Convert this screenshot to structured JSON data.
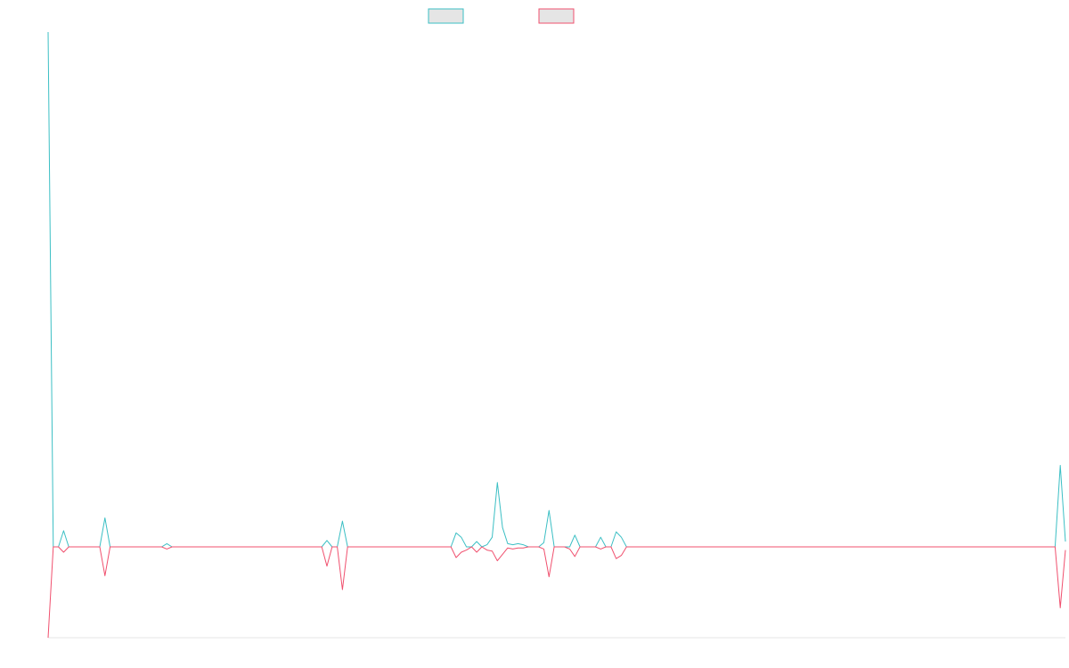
{
  "colors": {
    "background": "#ffffff",
    "legend_fill": "#e5e5e5",
    "axis": "#e6e6e6"
  },
  "legend": {
    "placement": "top-center",
    "entries": [
      {
        "label": "",
        "color": "#3bbfc4"
      },
      {
        "label": "",
        "color": "#f0506e"
      }
    ]
  },
  "chart_data": {
    "type": "line",
    "title": "",
    "xlabel": "",
    "ylabel": "",
    "grid": false,
    "ylim": [
      -85,
      480
    ],
    "xlim": [
      0,
      196
    ],
    "series": [
      {
        "color": "#3bbfc4",
        "points": [
          [
            0,
            480
          ],
          [
            1,
            0
          ],
          [
            2,
            0
          ],
          [
            3,
            15
          ],
          [
            4,
            0
          ],
          [
            5,
            0
          ],
          [
            6,
            0
          ],
          [
            7,
            0
          ],
          [
            8,
            0
          ],
          [
            9,
            0
          ],
          [
            10,
            0
          ],
          [
            11,
            27
          ],
          [
            12,
            0
          ],
          [
            13,
            0
          ],
          [
            14,
            0
          ],
          [
            15,
            0
          ],
          [
            20,
            0
          ],
          [
            22,
            0
          ],
          [
            23,
            3
          ],
          [
            24,
            0
          ],
          [
            25,
            0
          ],
          [
            28,
            0
          ],
          [
            30,
            0
          ],
          [
            40,
            0
          ],
          [
            50,
            0
          ],
          [
            53,
            0
          ],
          [
            54,
            6
          ],
          [
            55,
            0
          ],
          [
            56,
            0
          ],
          [
            57,
            24
          ],
          [
            58,
            0
          ],
          [
            60,
            0
          ],
          [
            70,
            0
          ],
          [
            78,
            0
          ],
          [
            79,
            13
          ],
          [
            80,
            9
          ],
          [
            81,
            0
          ],
          [
            82,
            0
          ],
          [
            83,
            5
          ],
          [
            84,
            0
          ],
          [
            85,
            2
          ],
          [
            86,
            9
          ],
          [
            87,
            60
          ],
          [
            88,
            18
          ],
          [
            89,
            3
          ],
          [
            90,
            2
          ],
          [
            91,
            3
          ],
          [
            92,
            2
          ],
          [
            93,
            0
          ],
          [
            94,
            0
          ],
          [
            95,
            0
          ],
          [
            96,
            4
          ],
          [
            97,
            34
          ],
          [
            98,
            0
          ],
          [
            99,
            0
          ],
          [
            100,
            0
          ],
          [
            101,
            0
          ],
          [
            102,
            11
          ],
          [
            103,
            0
          ],
          [
            104,
            0
          ],
          [
            105,
            0
          ],
          [
            106,
            0
          ],
          [
            107,
            9
          ],
          [
            108,
            0
          ],
          [
            109,
            0
          ],
          [
            110,
            14
          ],
          [
            111,
            9
          ],
          [
            112,
            0
          ],
          [
            113,
            0
          ],
          [
            120,
            0
          ],
          [
            140,
            0
          ],
          [
            160,
            0
          ],
          [
            180,
            0
          ],
          [
            195,
            0
          ],
          [
            196,
            76
          ],
          [
            197,
            5
          ]
        ]
      },
      {
        "color": "#f0506e",
        "points": [
          [
            0,
            -85
          ],
          [
            1,
            0
          ],
          [
            2,
            0
          ],
          [
            3,
            -5
          ],
          [
            4,
            0
          ],
          [
            5,
            0
          ],
          [
            6,
            0
          ],
          [
            7,
            0
          ],
          [
            8,
            0
          ],
          [
            9,
            0
          ],
          [
            10,
            0
          ],
          [
            11,
            -27
          ],
          [
            12,
            0
          ],
          [
            13,
            0
          ],
          [
            14,
            0
          ],
          [
            15,
            0
          ],
          [
            20,
            0
          ],
          [
            22,
            0
          ],
          [
            23,
            -2
          ],
          [
            24,
            0
          ],
          [
            25,
            0
          ],
          [
            28,
            0
          ],
          [
            30,
            0
          ],
          [
            40,
            0
          ],
          [
            50,
            0
          ],
          [
            53,
            0
          ],
          [
            54,
            -18
          ],
          [
            55,
            0
          ],
          [
            56,
            0
          ],
          [
            57,
            -40
          ],
          [
            58,
            0
          ],
          [
            60,
            0
          ],
          [
            70,
            0
          ],
          [
            78,
            0
          ],
          [
            79,
            -10
          ],
          [
            80,
            -5
          ],
          [
            81,
            -3
          ],
          [
            82,
            0
          ],
          [
            83,
            -5
          ],
          [
            84,
            0
          ],
          [
            85,
            -3
          ],
          [
            86,
            -4
          ],
          [
            87,
            -13
          ],
          [
            88,
            -7
          ],
          [
            89,
            -1
          ],
          [
            90,
            -2
          ],
          [
            91,
            -1
          ],
          [
            92,
            -1
          ],
          [
            93,
            0
          ],
          [
            94,
            0
          ],
          [
            95,
            0
          ],
          [
            96,
            -2
          ],
          [
            97,
            -28
          ],
          [
            98,
            0
          ],
          [
            99,
            0
          ],
          [
            100,
            0
          ],
          [
            101,
            -2
          ],
          [
            102,
            -9
          ],
          [
            103,
            0
          ],
          [
            104,
            0
          ],
          [
            105,
            0
          ],
          [
            106,
            0
          ],
          [
            107,
            -2
          ],
          [
            108,
            0
          ],
          [
            109,
            0
          ],
          [
            110,
            -11
          ],
          [
            111,
            -8
          ],
          [
            112,
            0
          ],
          [
            113,
            0
          ],
          [
            120,
            0
          ],
          [
            140,
            0
          ],
          [
            160,
            0
          ],
          [
            180,
            0
          ],
          [
            195,
            0
          ],
          [
            196,
            -57
          ],
          [
            197,
            -3
          ]
        ]
      }
    ]
  }
}
